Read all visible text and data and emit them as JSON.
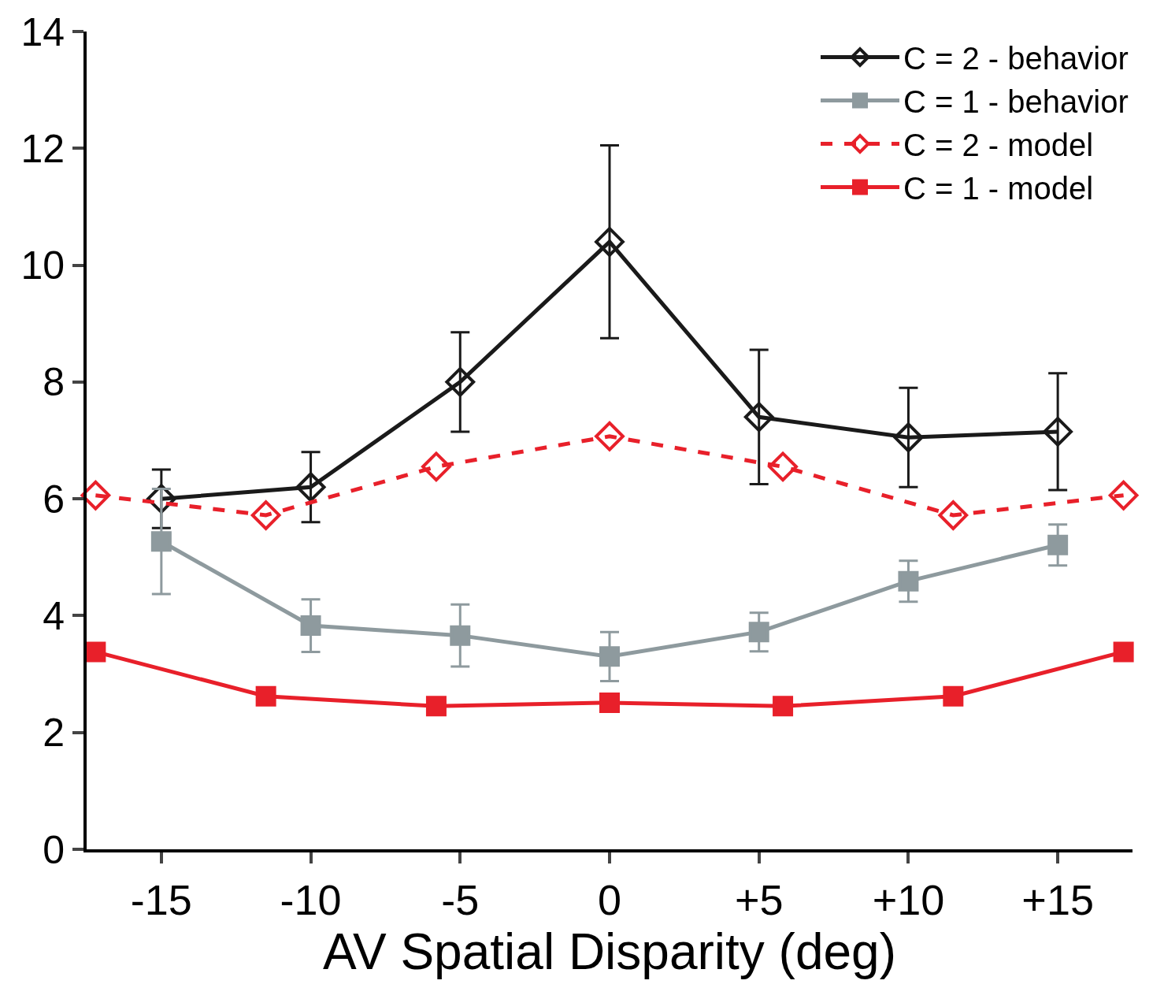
{
  "chart_data": {
    "type": "line",
    "xlabel": "AV Spatial Disparity (deg)",
    "xlim": [
      -17.5,
      17.5
    ],
    "xticks": [
      -15,
      -10,
      -5,
      0,
      {
        "value": 5,
        "label": "+5"
      },
      {
        "value": 10,
        "label": "+10"
      },
      {
        "value": 15,
        "label": "+15"
      }
    ],
    "ylim": [
      0,
      14
    ],
    "yticks": [
      0,
      2,
      4,
      6,
      8,
      10,
      12,
      14
    ],
    "legend": "top right",
    "series": [
      {
        "name": "C = 2 - behavior",
        "color": "#1a1a1a",
        "marker": "diamond",
        "line_style": "solid",
        "x": [
          -15,
          -10,
          -5,
          0,
          5,
          10,
          15
        ],
        "values": [
          6.0,
          6.2,
          8.0,
          10.4,
          7.4,
          7.05,
          7.15
        ],
        "errors": [
          0.5,
          0.6,
          0.85,
          1.65,
          1.15,
          0.85,
          1.0
        ]
      },
      {
        "name": "C = 1 - behavior",
        "color": "#8e9a9e",
        "marker": "square",
        "line_style": "solid",
        "x": [
          -15,
          -10,
          -5,
          0,
          5,
          10,
          15
        ],
        "values": [
          5.27,
          3.83,
          3.66,
          3.3,
          3.72,
          4.59,
          5.21
        ],
        "errors": [
          0.9,
          0.45,
          0.53,
          0.42,
          0.33,
          0.35,
          0.35
        ]
      },
      {
        "name": "C = 2 - model",
        "color": "#e8202a",
        "marker": "diamond",
        "line_style": "dashed",
        "x": [
          -17.2,
          -11.5,
          -5.8,
          0,
          5.8,
          11.5,
          17.2
        ],
        "values": [
          6.06,
          5.72,
          6.55,
          7.07,
          6.55,
          5.72,
          6.06
        ]
      },
      {
        "name": "C = 1 - model",
        "color": "#e8202a",
        "marker": "square",
        "line_style": "solid",
        "x": [
          -17.2,
          -11.5,
          -5.8,
          0,
          5.8,
          11.5,
          17.2
        ],
        "values": [
          3.38,
          2.62,
          2.45,
          2.51,
          2.45,
          2.62,
          3.38
        ]
      }
    ]
  }
}
